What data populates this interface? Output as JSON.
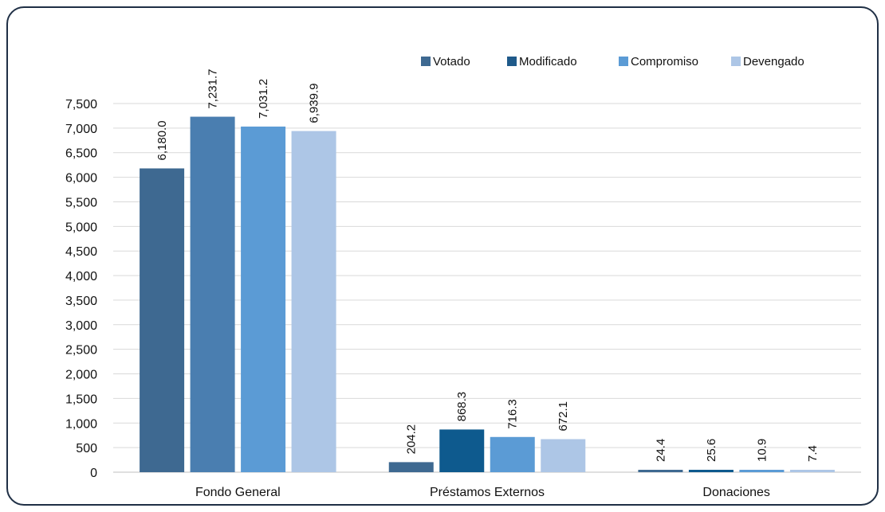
{
  "chart_data": {
    "type": "bar",
    "title": "",
    "xlabel": "",
    "ylabel": "",
    "categories": [
      "Fondo General",
      "Préstamos Externos",
      "Donaciones"
    ],
    "series": [
      {
        "name": "Votado",
        "color": "#3e6991",
        "values": [
          6180.0,
          204.2,
          24.4
        ],
        "labels": [
          "6,180.0",
          "204.2",
          "24.4"
        ]
      },
      {
        "name": "Modificado",
        "color": "#1f5a8a",
        "values": [
          7231.7,
          868.3,
          25.6
        ],
        "labels": [
          "7,231.7",
          "868.3",
          "25.6"
        ]
      },
      {
        "name": "Compromiso",
        "color": "#5b9bd5",
        "values": [
          7031.2,
          716.3,
          10.9
        ],
        "labels": [
          "7,031.2",
          "716.3",
          "10.9"
        ]
      },
      {
        "name": "Devengado",
        "color": "#adc6e6",
        "values": [
          6939.9,
          672.1,
          7.4
        ],
        "labels": [
          "6,939.9",
          "672.1",
          "7.4"
        ]
      }
    ],
    "bar_colors": [
      [
        "#3e6991",
        "#3e6991",
        "#3e6991"
      ],
      [
        "#4a7eb0",
        "#0e5a8e",
        "#0e5a8e"
      ],
      [
        "#5b9bd5",
        "#5b9bd5",
        "#5b9bd5"
      ],
      [
        "#adc6e6",
        "#adc6e6",
        "#adc6e6"
      ]
    ],
    "ylim": [
      0,
      7500
    ],
    "yticks": [
      0,
      500,
      1000,
      1500,
      2000,
      2500,
      3000,
      3500,
      4000,
      4500,
      5000,
      5500,
      6000,
      6500,
      7000,
      7500
    ],
    "ytick_labels": [
      "0",
      "500",
      "1,000",
      "1,500",
      "2,000",
      "2,500",
      "3,000",
      "3,500",
      "4,000",
      "4,500",
      "5,000",
      "5,500",
      "6,000",
      "6,500",
      "7,000",
      "7,500"
    ],
    "grid": true,
    "legend_position": "top-right",
    "data_labels_rotated": true
  }
}
